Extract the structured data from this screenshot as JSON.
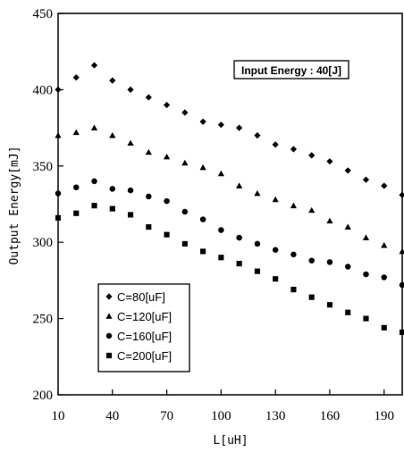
{
  "chart_data": {
    "type": "scatter",
    "title": "",
    "xlabel": "L[uH]",
    "ylabel": "Output Energy[mJ]",
    "xlim": [
      10,
      200
    ],
    "ylim": [
      200,
      450
    ],
    "x_ticks": [
      "10",
      "40",
      "70",
      "100",
      "130",
      "160",
      "190"
    ],
    "y_ticks": [
      "200",
      "250",
      "300",
      "350",
      "400",
      "450"
    ],
    "grid": false,
    "legend_position": "bottom-left",
    "annotation": "Input Energy : 40[J]",
    "x": [
      10,
      20,
      30,
      40,
      50,
      60,
      70,
      80,
      90,
      100,
      110,
      120,
      130,
      140,
      150,
      160,
      170,
      180,
      190,
      200
    ],
    "series": [
      {
        "name": "C=80[uF]",
        "marker": "diamond",
        "values": [
          400,
          408,
          416,
          406,
          400,
          395,
          390,
          385,
          379,
          377,
          375,
          370,
          364,
          361,
          357,
          353,
          347,
          341,
          337,
          331
        ]
      },
      {
        "name": "C=120[uF]",
        "marker": "triangle",
        "values": [
          370,
          372,
          375,
          370,
          365,
          359,
          356,
          352,
          349,
          345,
          337,
          332,
          328,
          324,
          321,
          314,
          310,
          303,
          298,
          294
        ]
      },
      {
        "name": "C=160[uF]",
        "marker": "circle",
        "values": [
          332,
          336,
          340,
          335,
          334,
          330,
          327,
          320,
          315,
          308,
          303,
          299,
          295,
          292,
          288,
          287,
          284,
          279,
          277,
          272
        ]
      },
      {
        "name": "C=200[uF]",
        "marker": "square",
        "values": [
          316,
          319,
          324,
          322,
          318,
          310,
          305,
          299,
          294,
          290,
          286,
          281,
          276,
          269,
          264,
          259,
          254,
          250,
          244,
          241
        ]
      }
    ]
  }
}
